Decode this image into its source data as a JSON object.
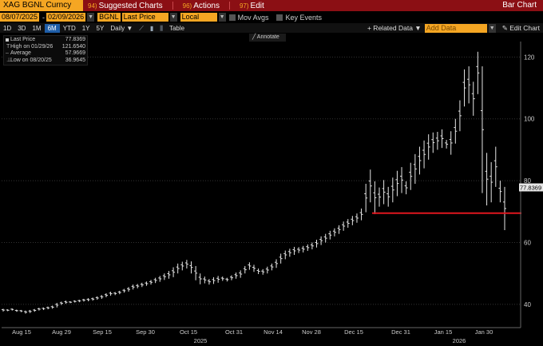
{
  "topbar": {
    "ticker": "XAG BGNL Curncy",
    "menu": [
      {
        "num": "94)",
        "label": "Suggested Charts"
      },
      {
        "num": "96)",
        "label": "Actions"
      },
      {
        "num": "97)",
        "label": "Edit"
      }
    ],
    "title": "Bar Chart"
  },
  "row2": {
    "start_date": "08/07/2025",
    "end_date": "02/09/2026",
    "source": "BGNL",
    "field": "Last Price",
    "currency": "Local CCY",
    "mov_avgs": "Mov Avgs",
    "key_events": "Key Events"
  },
  "periods": [
    "1D",
    "3D",
    "1M",
    "6M",
    "YTD",
    "1Y",
    "5Y"
  ],
  "active_period": "6M",
  "frequency": "Daily",
  "table_label": "Table",
  "related_data": "+ Related Data",
  "add_data_placeholder": "Add Data",
  "edit_chart": "Edit Chart",
  "annotate": "Annotate",
  "legend": [
    {
      "label": "Last Price",
      "value": "77.8369"
    },
    {
      "label": "High on 01/29/26",
      "value": "121.6540"
    },
    {
      "label": "Average",
      "value": "57.9669"
    },
    {
      "label": "Low on 08/20/25",
      "value": "36.9645"
    }
  ],
  "colors": {
    "accent": "#f5a623",
    "topbar": "#8b0f14",
    "active": "#1f5ea8",
    "support_line": "#e0161e",
    "bars": "#e6e6e6"
  },
  "chart_data": {
    "type": "bar",
    "title": "Bar Chart",
    "ylim": [
      33,
      125
    ],
    "y_ticks": [
      40,
      60,
      80,
      100,
      120
    ],
    "y_tick_labels": [
      "40",
      "60",
      "80",
      "100",
      "120"
    ],
    "last_price_label": "77.8369",
    "last_price": 77.8369,
    "support_level": 69.5,
    "x_tick_labels": [
      "Aug 15",
      "Aug 29",
      "Sep 15",
      "Sep 30",
      "Oct 15",
      "Oct 31",
      "Nov 14",
      "Nov 28",
      "Dec 15",
      "Dec 31",
      "Jan 15",
      "Jan 30"
    ],
    "year_labels": [
      "2025",
      "2026"
    ],
    "bars": [
      {
        "lo": 37.7,
        "hi": 38.6
      },
      {
        "lo": 37.8,
        "hi": 38.4
      },
      {
        "lo": 38.0,
        "hi": 38.7
      },
      {
        "lo": 37.6,
        "hi": 38.3
      },
      {
        "lo": 37.5,
        "hi": 38.2
      },
      {
        "lo": 37.0,
        "hi": 38.0
      },
      {
        "lo": 37.2,
        "hi": 38.2
      },
      {
        "lo": 37.6,
        "hi": 38.5
      },
      {
        "lo": 38.0,
        "hi": 38.9
      },
      {
        "lo": 38.2,
        "hi": 39.0
      },
      {
        "lo": 38.4,
        "hi": 39.3
      },
      {
        "lo": 38.6,
        "hi": 39.6
      },
      {
        "lo": 39.0,
        "hi": 40.5
      },
      {
        "lo": 39.8,
        "hi": 40.9
      },
      {
        "lo": 40.2,
        "hi": 41.2
      },
      {
        "lo": 40.4,
        "hi": 41.0
      },
      {
        "lo": 40.6,
        "hi": 41.3
      },
      {
        "lo": 40.7,
        "hi": 41.5
      },
      {
        "lo": 40.9,
        "hi": 41.8
      },
      {
        "lo": 41.0,
        "hi": 42.0
      },
      {
        "lo": 41.2,
        "hi": 42.2
      },
      {
        "lo": 41.5,
        "hi": 42.6
      },
      {
        "lo": 41.8,
        "hi": 43.0
      },
      {
        "lo": 42.3,
        "hi": 43.6
      },
      {
        "lo": 42.8,
        "hi": 44.1
      },
      {
        "lo": 43.0,
        "hi": 44.0
      },
      {
        "lo": 43.3,
        "hi": 44.4
      },
      {
        "lo": 43.8,
        "hi": 45.0
      },
      {
        "lo": 44.1,
        "hi": 45.6
      },
      {
        "lo": 44.8,
        "hi": 46.4
      },
      {
        "lo": 45.2,
        "hi": 46.6
      },
      {
        "lo": 45.6,
        "hi": 47.0
      },
      {
        "lo": 46.0,
        "hi": 47.4
      },
      {
        "lo": 46.4,
        "hi": 47.9
      },
      {
        "lo": 46.9,
        "hi": 48.6
      },
      {
        "lo": 47.3,
        "hi": 49.2
      },
      {
        "lo": 47.9,
        "hi": 50.0
      },
      {
        "lo": 48.3,
        "hi": 50.8
      },
      {
        "lo": 48.8,
        "hi": 52.0
      },
      {
        "lo": 50.0,
        "hi": 53.2
      },
      {
        "lo": 51.0,
        "hi": 53.8
      },
      {
        "lo": 51.6,
        "hi": 54.4
      },
      {
        "lo": 50.0,
        "hi": 53.9
      },
      {
        "lo": 47.8,
        "hi": 52.4
      },
      {
        "lo": 46.5,
        "hi": 50.0
      },
      {
        "lo": 46.8,
        "hi": 49.0
      },
      {
        "lo": 46.4,
        "hi": 48.2
      },
      {
        "lo": 46.6,
        "hi": 48.8
      },
      {
        "lo": 47.0,
        "hi": 49.2
      },
      {
        "lo": 47.6,
        "hi": 49.0
      },
      {
        "lo": 47.4,
        "hi": 48.6
      },
      {
        "lo": 47.8,
        "hi": 49.4
      },
      {
        "lo": 48.3,
        "hi": 50.3
      },
      {
        "lo": 48.6,
        "hi": 51.0
      },
      {
        "lo": 50.0,
        "hi": 52.4
      },
      {
        "lo": 51.2,
        "hi": 53.6
      },
      {
        "lo": 50.5,
        "hi": 52.8
      },
      {
        "lo": 49.8,
        "hi": 51.6
      },
      {
        "lo": 49.6,
        "hi": 51.4
      },
      {
        "lo": 50.0,
        "hi": 52.2
      },
      {
        "lo": 51.0,
        "hi": 53.2
      },
      {
        "lo": 51.8,
        "hi": 54.6
      },
      {
        "lo": 53.2,
        "hi": 56.4
      },
      {
        "lo": 54.6,
        "hi": 57.4
      },
      {
        "lo": 55.4,
        "hi": 58.0
      },
      {
        "lo": 56.0,
        "hi": 58.6
      },
      {
        "lo": 56.6,
        "hi": 58.5
      },
      {
        "lo": 56.8,
        "hi": 58.9
      },
      {
        "lo": 57.3,
        "hi": 59.4
      },
      {
        "lo": 57.8,
        "hi": 60.0
      },
      {
        "lo": 58.4,
        "hi": 60.9
      },
      {
        "lo": 59.2,
        "hi": 62.0
      },
      {
        "lo": 60.0,
        "hi": 62.8
      },
      {
        "lo": 61.0,
        "hi": 63.8
      },
      {
        "lo": 62.0,
        "hi": 64.6
      },
      {
        "lo": 62.8,
        "hi": 65.6
      },
      {
        "lo": 63.8,
        "hi": 66.8
      },
      {
        "lo": 64.8,
        "hi": 67.6
      },
      {
        "lo": 65.6,
        "hi": 68.6
      },
      {
        "lo": 66.4,
        "hi": 69.4
      },
      {
        "lo": 67.2,
        "hi": 71.0
      },
      {
        "lo": 69.8,
        "hi": 79.0
      },
      {
        "lo": 73.0,
        "hi": 83.6
      },
      {
        "lo": 69.2,
        "hi": 79.8
      },
      {
        "lo": 71.6,
        "hi": 77.8
      },
      {
        "lo": 72.4,
        "hi": 80.2
      },
      {
        "lo": 71.6,
        "hi": 78.0
      },
      {
        "lo": 73.0,
        "hi": 81.0
      },
      {
        "lo": 75.0,
        "hi": 83.2
      },
      {
        "lo": 76.0,
        "hi": 84.4
      },
      {
        "lo": 75.6,
        "hi": 79.8
      },
      {
        "lo": 77.0,
        "hi": 85.8
      },
      {
        "lo": 79.0,
        "hi": 88.6
      },
      {
        "lo": 82.0,
        "hi": 91.0
      },
      {
        "lo": 84.0,
        "hi": 93.0
      },
      {
        "lo": 86.8,
        "hi": 95.0
      },
      {
        "lo": 89.0,
        "hi": 95.6
      },
      {
        "lo": 90.0,
        "hi": 95.8
      },
      {
        "lo": 90.6,
        "hi": 96.6
      },
      {
        "lo": 90.4,
        "hi": 93.2
      },
      {
        "lo": 88.4,
        "hi": 96.0
      },
      {
        "lo": 92.0,
        "hi": 100.0
      },
      {
        "lo": 96.0,
        "hi": 106.0
      },
      {
        "lo": 104.0,
        "hi": 116.0
      },
      {
        "lo": 105.0,
        "hi": 117.0
      },
      {
        "lo": 101.0,
        "hi": 112.0
      },
      {
        "lo": 108.0,
        "hi": 121.7
      },
      {
        "lo": 76.0,
        "hi": 117.0
      },
      {
        "lo": 72.0,
        "hi": 89.0
      },
      {
        "lo": 73.0,
        "hi": 86.0
      },
      {
        "lo": 78.0,
        "hi": 91.0
      },
      {
        "lo": 73.0,
        "hi": 80.0
      },
      {
        "lo": 64.0,
        "hi": 78.0
      }
    ]
  }
}
